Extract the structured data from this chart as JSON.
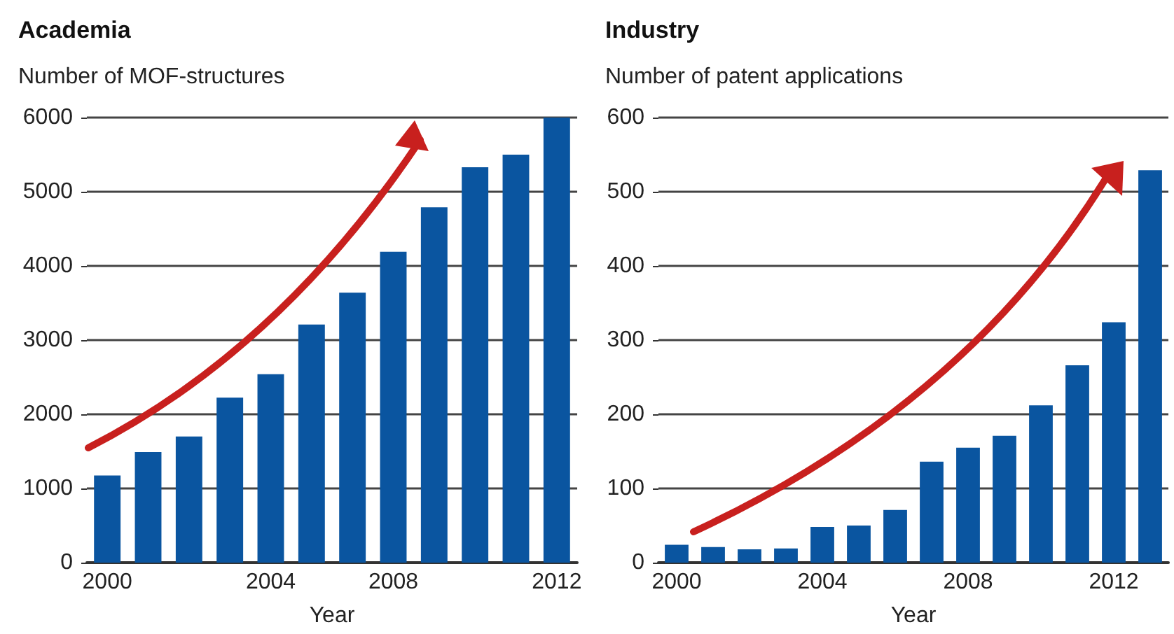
{
  "chart_data": [
    {
      "type": "bar",
      "title": "Academia",
      "ylabel": "Number of MOF-structures",
      "xlabel": "Year",
      "categories": [
        "2000",
        null,
        null,
        null,
        "2004",
        null,
        null,
        "2008",
        null,
        null,
        null,
        "2012"
      ],
      "values": [
        1175,
        1490,
        1700,
        2225,
        2540,
        3210,
        3640,
        4190,
        4790,
        5330,
        5500,
        6000
      ],
      "color": "#0a55a0",
      "ylim": [
        0,
        6000
      ],
      "yticks": [
        0,
        1000,
        2000,
        3000,
        4000,
        5000,
        6000
      ],
      "grid": "y"
    },
    {
      "type": "bar",
      "title": "Industry",
      "ylabel": "Number of patent applications",
      "xlabel": "Year",
      "categories": [
        "2000",
        null,
        null,
        null,
        "2004",
        null,
        null,
        null,
        "2008",
        null,
        null,
        null,
        "2012",
        null
      ],
      "values": [
        24,
        21,
        18,
        19,
        48,
        50,
        71,
        136,
        155,
        171,
        212,
        266,
        324,
        529
      ],
      "color": "#0a55a0",
      "ylim": [
        0,
        600
      ],
      "yticks": [
        0,
        100,
        200,
        300,
        400,
        500,
        600
      ],
      "grid": "y"
    }
  ]
}
